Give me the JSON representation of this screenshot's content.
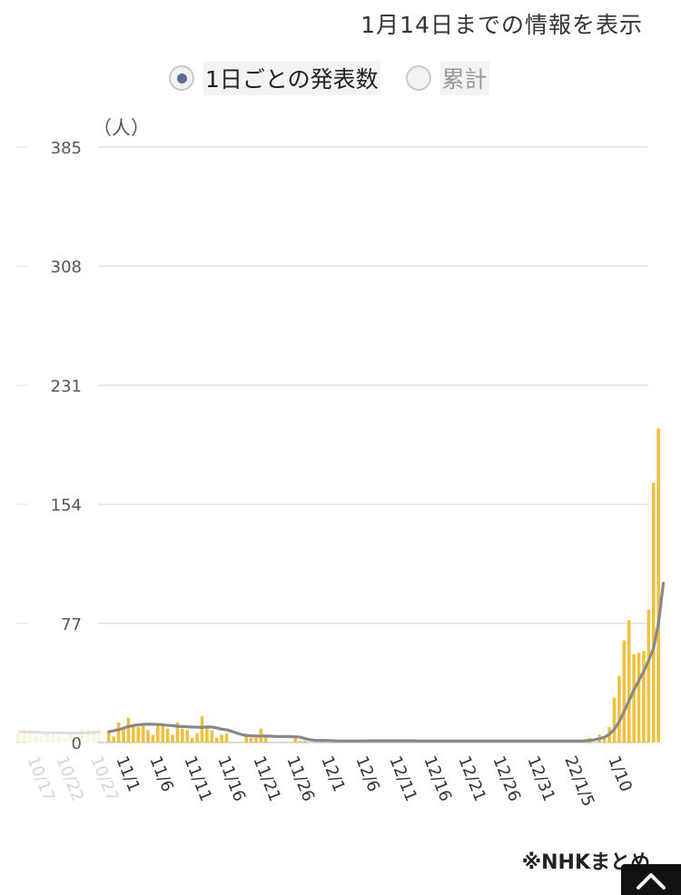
{
  "header_note": "1月14日までの情報を表示",
  "toggle": {
    "options": [
      {
        "label": "1日ごとの発表数",
        "selected": true
      },
      {
        "label": "累計",
        "selected": false
      }
    ]
  },
  "footer_note": "※NHKまとめ",
  "icons": {
    "scroll_top": "chevron-up-icon"
  },
  "colors": {
    "bar": "#f0c040",
    "line": "#888888",
    "grid": "#e3e3e3"
  },
  "chart_data": {
    "type": "bar",
    "unit_label": "（人）",
    "ylim": [
      0,
      385
    ],
    "yticks": [
      0,
      77,
      154,
      231,
      308,
      385
    ],
    "x_tick_labels": [
      "10/17",
      "10/22",
      "10/27",
      "11/1",
      "11/6",
      "11/11",
      "11/16",
      "11/21",
      "11/26",
      "12/1",
      "12/6",
      "12/11",
      "12/16",
      "12/21",
      "12/26",
      "12/31",
      "22/1/5",
      "1/10"
    ],
    "faded_tick_labels": [
      "10/17",
      "10/22",
      "10/27"
    ],
    "faded_values": [
      6,
      8,
      7,
      5,
      4,
      6,
      7,
      5,
      3,
      6,
      4,
      9,
      8,
      7,
      9
    ],
    "faded_avg": [
      7,
      7,
      6.8,
      6.6,
      6.5,
      6.4,
      6.3,
      6.3,
      6.2,
      6.1,
      6.1,
      6.2,
      6.4,
      6.5,
      6.6
    ],
    "daily_values": [
      7,
      4,
      13,
      10,
      16,
      11,
      10,
      11,
      8,
      5,
      11,
      12,
      9,
      5,
      13,
      9,
      8,
      3,
      6,
      17,
      10,
      8,
      3,
      5,
      6,
      0,
      0,
      0,
      4,
      3,
      3,
      9,
      4,
      0,
      0,
      0,
      0,
      0,
      4,
      1,
      1,
      0,
      0,
      0,
      0,
      0,
      0,
      0,
      0,
      0,
      0,
      0,
      0,
      0,
      0,
      0,
      0,
      0,
      0,
      0,
      0,
      0,
      0,
      0,
      0,
      0,
      0,
      0,
      0,
      0,
      0,
      0,
      0,
      0,
      0,
      0,
      0,
      0,
      0,
      0,
      0,
      0,
      0,
      0,
      0,
      0,
      0,
      0,
      0,
      0,
      1,
      0,
      0,
      0,
      0,
      0,
      0,
      0,
      3,
      0,
      5,
      3,
      10,
      29,
      43,
      66,
      79,
      57,
      58,
      59,
      86,
      168,
      203
    ],
    "moving_avg": [
      7,
      7.6,
      8.3,
      9.3,
      10.3,
      11,
      11.4,
      11.7,
      11.9,
      11.8,
      11.7,
      11.4,
      11.1,
      10.9,
      10.5,
      10.3,
      10.2,
      10,
      9.9,
      9.8,
      10.1,
      10,
      9.4,
      8.6,
      8.2,
      7.3,
      6.2,
      5.2,
      4.6,
      4.3,
      4.2,
      4.2,
      4.2,
      4.1,
      3.9,
      3.9,
      3.9,
      3.8,
      3.7,
      3.5,
      2.5,
      1.8,
      1.4,
      1.3,
      1.3,
      1.2,
      1.1,
      1,
      1,
      1,
      1,
      1,
      1,
      1.1,
      1.1,
      1.1,
      1.1,
      1.1,
      1.1,
      1.1,
      1.1,
      1.1,
      1.1,
      1,
      1,
      1,
      1,
      1,
      1,
      1,
      1,
      1,
      1,
      1,
      1,
      1,
      1,
      1,
      1,
      1,
      1,
      1,
      1,
      1,
      1,
      1,
      1,
      1,
      1,
      1,
      1,
      1,
      1,
      1,
      1,
      1,
      1,
      1.1,
      1.4,
      1.8,
      2.5,
      3.4,
      5.3,
      8.5,
      13.4,
      20,
      27,
      34,
      40,
      46,
      53,
      61,
      77,
      103
    ]
  }
}
